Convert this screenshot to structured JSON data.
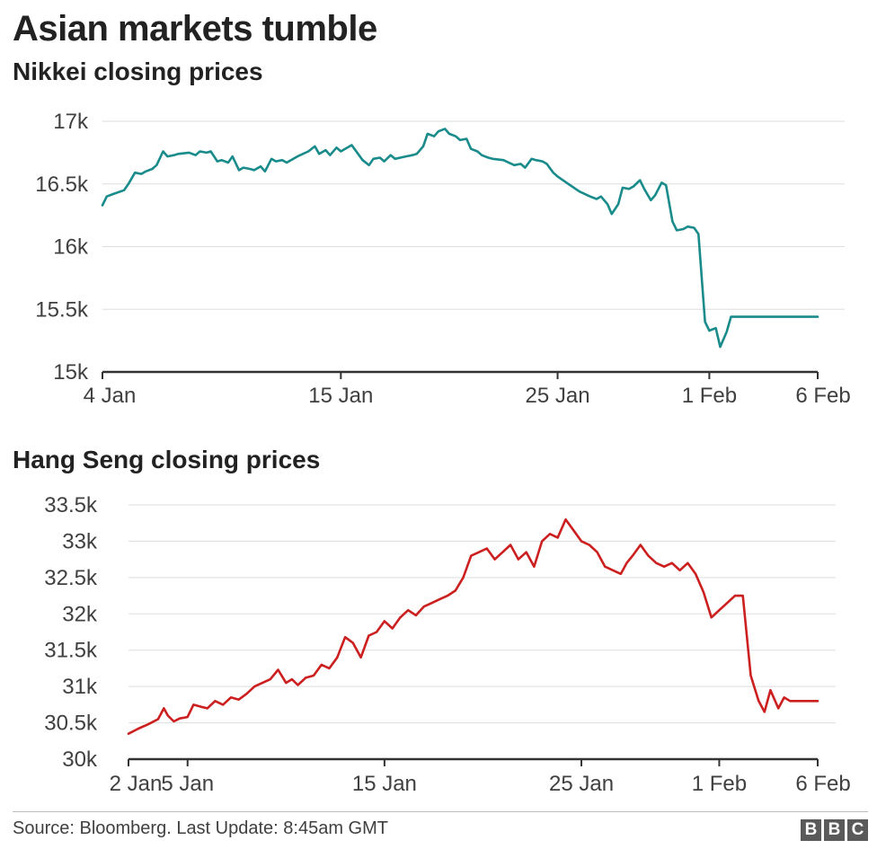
{
  "header": {
    "title": "Asian markets tumble"
  },
  "footer": {
    "source": "Source: Bloomberg. Last Update: 8:45am GMT",
    "logo_letters": [
      "B",
      "B",
      "C"
    ]
  },
  "colors": {
    "nikkei": "#1a8b8b",
    "hang_seng": "#cc1f1f",
    "grid": "#dddddd",
    "axis": "#333333"
  },
  "chart_data": [
    {
      "type": "line",
      "title": "Nikkei closing prices",
      "x_range_days": [
        4,
        37
      ],
      "ylim": [
        15000,
        17000
      ],
      "y_ticks": [
        15000,
        15500,
        16000,
        16500,
        17000
      ],
      "y_tick_labels": [
        "15k",
        "15.5k",
        "16k",
        "16.5k",
        "17k"
      ],
      "x_ticks": [
        {
          "day": 4,
          "label": "4 Jan"
        },
        {
          "day": 15,
          "label": "15 Jan"
        },
        {
          "day": 25,
          "label": "25 Jan"
        },
        {
          "day": 32,
          "label": "1 Feb"
        },
        {
          "day": 37,
          "label": "6 Feb"
        }
      ],
      "grid": true,
      "series": [
        {
          "x": [
            4,
            4.2,
            4.5,
            5.0,
            5.2,
            5.5,
            5.8,
            6.0,
            6.3,
            6.5,
            6.8,
            7.0,
            7.3,
            7.5,
            8.0,
            8.3,
            8.5,
            8.8,
            9.0,
            9.3,
            9.5,
            9.8,
            10.0,
            10.3,
            10.5,
            10.8,
            11.0,
            11.3,
            11.5,
            11.8,
            12.0,
            12.3,
            12.5,
            13.0,
            13.5,
            13.8,
            14.0,
            14.3,
            14.5,
            14.8,
            15.0,
            15.5,
            16.0,
            16.3,
            16.5,
            16.8,
            17.0,
            17.3,
            17.5,
            18.0,
            18.3,
            18.5,
            18.8,
            19.0,
            19.3,
            19.5,
            19.8,
            20.0,
            20.3,
            20.5,
            20.8,
            21.0,
            21.3,
            21.5,
            21.8,
            22.0,
            22.5,
            23.0,
            23.3,
            23.5,
            23.8,
            24.0,
            24.3,
            24.5,
            24.8,
            25.0,
            25.5,
            26.0,
            26.5,
            26.8,
            27.0,
            27.3,
            27.5,
            27.8,
            28.0,
            28.3,
            28.5,
            28.8,
            29.0,
            29.3,
            29.5,
            29.8,
            30.0,
            30.3,
            30.5,
            30.8,
            31.0,
            31.3,
            31.5,
            31.8,
            32.0,
            32.3,
            32.5,
            32.8,
            33.0,
            33.3,
            33.5,
            33.8,
            34.0,
            34.3,
            34.5,
            34.8,
            35.0,
            35.3,
            35.5,
            35.8,
            36.0,
            36.3,
            36.5,
            36.8,
            37.0
          ],
          "values": [
            16330,
            16400,
            16420,
            16450,
            16500,
            16590,
            16580,
            16600,
            16620,
            16650,
            16760,
            16720,
            16730,
            16740,
            16750,
            16730,
            16760,
            16750,
            16760,
            16680,
            16690,
            16670,
            16720,
            16610,
            16630,
            16620,
            16610,
            16640,
            16600,
            16700,
            16680,
            16690,
            16670,
            16720,
            16760,
            16800,
            16740,
            16770,
            16730,
            16790,
            16760,
            16810,
            16690,
            16650,
            16700,
            16710,
            16680,
            16730,
            16700,
            16720,
            16730,
            16740,
            16800,
            16900,
            16880,
            16920,
            16940,
            16900,
            16880,
            16850,
            16860,
            16780,
            16760,
            16730,
            16710,
            16700,
            16690,
            16650,
            16660,
            16630,
            16700,
            16690,
            16680,
            16660,
            16590,
            16560,
            16500,
            16440,
            16400,
            16380,
            16400,
            16340,
            16260,
            16340,
            16470,
            16460,
            16480,
            16530,
            16460,
            16370,
            16410,
            16510,
            16490,
            16200,
            16130,
            16140,
            16160,
            16150,
            16100,
            15400,
            15330,
            15350,
            15200,
            15320,
            15440,
            15440,
            15440,
            15440,
            15440,
            15440,
            15440,
            15440,
            15440,
            15440,
            15440,
            15440,
            15440,
            15440,
            15440,
            15440,
            15440
          ]
        }
      ]
    },
    {
      "type": "line",
      "title": "Hang Seng closing prices",
      "x_range_days": [
        2,
        37
      ],
      "ylim": [
        30000,
        33500
      ],
      "y_ticks": [
        30000,
        30500,
        31000,
        31500,
        32000,
        32500,
        33000,
        33500
      ],
      "y_tick_labels": [
        "30k",
        "30.5k",
        "31k",
        "31.5k",
        "32k",
        "32.5k",
        "33k",
        "33.5k"
      ],
      "x_ticks": [
        {
          "day": 2,
          "label": "2 Jan"
        },
        {
          "day": 5,
          "label": "5 Jan"
        },
        {
          "day": 15,
          "label": "15 Jan"
        },
        {
          "day": 25,
          "label": "25 Jan"
        },
        {
          "day": 32,
          "label": "1 Feb"
        },
        {
          "day": 37,
          "label": "6 Feb"
        }
      ],
      "grid": true,
      "series": [
        {
          "x": [
            2.0,
            2.5,
            3.0,
            3.5,
            3.8,
            4.0,
            4.3,
            4.6,
            5.0,
            5.3,
            5.7,
            6.0,
            6.4,
            6.8,
            7.2,
            7.6,
            8.0,
            8.4,
            8.8,
            9.2,
            9.6,
            10.0,
            10.3,
            10.6,
            11.0,
            11.4,
            11.8,
            12.2,
            12.6,
            13.0,
            13.4,
            13.8,
            14.2,
            14.6,
            15.0,
            15.4,
            15.8,
            16.2,
            16.6,
            17.0,
            17.4,
            17.8,
            18.2,
            18.6,
            19.0,
            19.4,
            19.8,
            20.2,
            20.6,
            21.0,
            21.4,
            21.8,
            22.2,
            22.6,
            23.0,
            23.4,
            23.8,
            24.2,
            24.6,
            25.0,
            25.4,
            25.8,
            26.2,
            26.6,
            27.0,
            27.3,
            27.6,
            28.0,
            28.4,
            28.8,
            29.2,
            29.6,
            30.0,
            30.4,
            30.8,
            31.2,
            31.6,
            32.0,
            32.4,
            32.8,
            33.2,
            33.6,
            34.0,
            34.3,
            34.6,
            35.0,
            35.3,
            35.6,
            36.0,
            36.2,
            36.5,
            36.8,
            37.0,
            37.2,
            37.4,
            37.6,
            37.8,
            38.0,
            38.2
          ],
          "values": [
            30350,
            30420,
            30480,
            30550,
            30700,
            30600,
            30520,
            30560,
            30580,
            30750,
            30720,
            30700,
            30800,
            30750,
            30850,
            30820,
            30900,
            31000,
            31050,
            31100,
            31230,
            31050,
            31100,
            31020,
            31120,
            31150,
            31300,
            31250,
            31400,
            31680,
            31600,
            31400,
            31700,
            31750,
            31900,
            31800,
            31950,
            32050,
            31980,
            32100,
            32150,
            32200,
            32250,
            32320,
            32500,
            32800,
            32850,
            32900,
            32750,
            32850,
            32950,
            32750,
            32850,
            32650,
            33000,
            33100,
            33050,
            33300,
            33150,
            33000,
            32950,
            32850,
            32650,
            32600,
            32550,
            32700,
            32800,
            32950,
            32800,
            32700,
            32650,
            32700,
            32600,
            32700,
            32550,
            32300,
            31950,
            32050,
            32150,
            32250,
            32250,
            31150,
            30800,
            30650,
            30950,
            30700,
            30850,
            30800,
            30800,
            30800,
            30800,
            30800,
            30800,
            30800,
            30800,
            30800,
            30800,
            30800,
            30800
          ]
        }
      ]
    }
  ]
}
